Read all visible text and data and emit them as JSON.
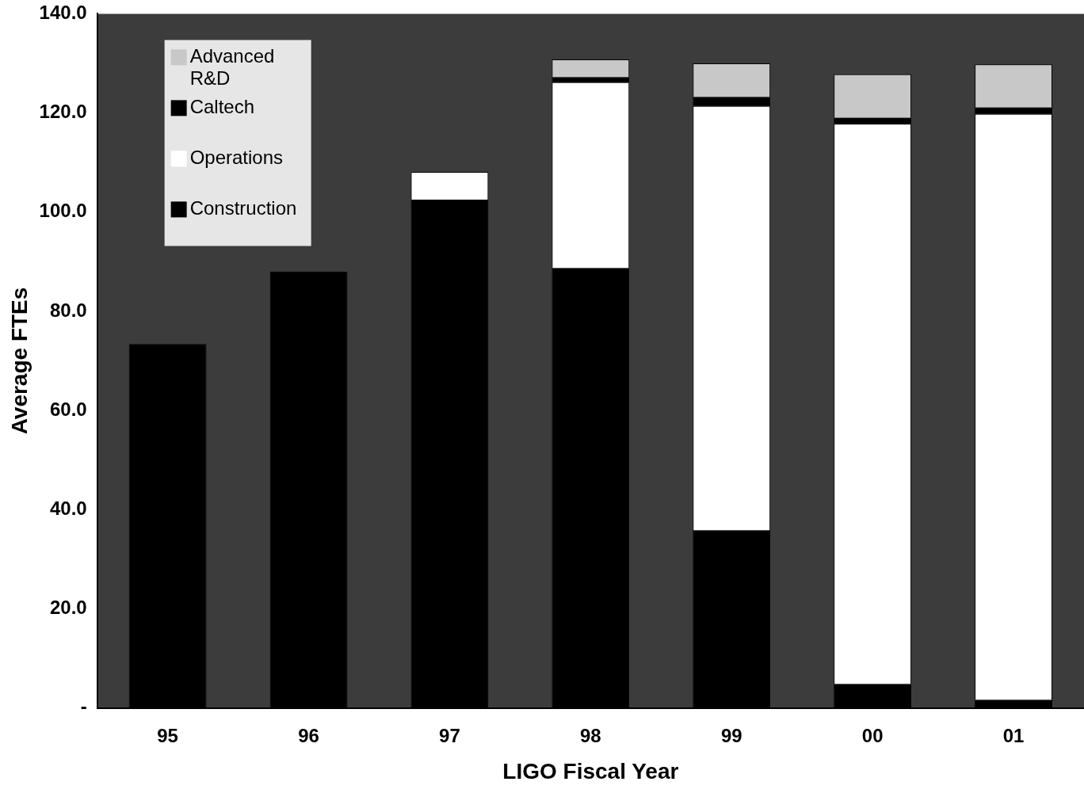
{
  "chart_data": {
    "type": "bar",
    "stacked": true,
    "xlabel": "LIGO Fiscal Year",
    "ylabel": "Average FTEs",
    "categories": [
      "95",
      "96",
      "97",
      "98",
      "99",
      "00",
      "01"
    ],
    "series": [
      {
        "name": "Construction",
        "color": "#000000",
        "values": [
          73.4,
          88,
          102.5,
          88.7,
          35.8,
          4.8,
          1.6
        ]
      },
      {
        "name": "Operations",
        "color": "#ffffff",
        "values": [
          null,
          null,
          5.6,
          37.5,
          85.6,
          113,
          118.2
        ]
      },
      {
        "name": "Caltech",
        "color": "#000000",
        "values": [
          null,
          null,
          null,
          1.0,
          1.8,
          1.2,
          1.3
        ]
      },
      {
        "name": "Advanced R&D",
        "color": "#c8c8c8",
        "values": [
          null,
          null,
          null,
          3.6,
          6.8,
          8.8,
          8.7
        ]
      }
    ],
    "ylim": [
      0,
      140
    ],
    "yticks": [
      {
        "value": 0,
        "label": "-"
      },
      {
        "value": 20,
        "label": "20.0"
      },
      {
        "value": 40,
        "label": "40.0"
      },
      {
        "value": 60,
        "label": "60.0"
      },
      {
        "value": 80,
        "label": "80.0"
      },
      {
        "value": 100,
        "label": "100.0"
      },
      {
        "value": 120,
        "label": "120.0"
      },
      {
        "value": 140,
        "label": "140.0"
      }
    ],
    "legend": "top left"
  }
}
